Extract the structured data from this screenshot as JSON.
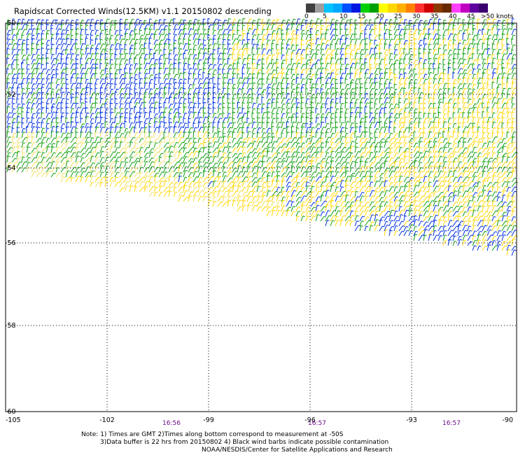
{
  "title": "Rapidscat Corrected Winds(12.5KM) v1.1 20150802 descending",
  "legend": {
    "unit_label": ">50 knots",
    "ticks": [
      "0",
      "5",
      "10",
      "15",
      "20",
      "25",
      "30",
      "35",
      "40",
      "45"
    ],
    "colors": [
      "#404040",
      "#9e9e9e",
      "#00c4ff",
      "#00a8ff",
      "#0050ff",
      "#0018e0",
      "#00d000",
      "#00a000",
      "#ffff00",
      "#ffd700",
      "#ffb000",
      "#ff8000",
      "#ff3030",
      "#d00000",
      "#8a3a00",
      "#6a2a00",
      "#ff40ff",
      "#c000c0",
      "#6000a0",
      "#3a0070"
    ]
  },
  "map": {
    "lat_labels": [
      "-50",
      "-52",
      "-54",
      "-56",
      "-58",
      "-60"
    ],
    "lon_labels": [
      "-105",
      "-102",
      "-99",
      "-96",
      "-93",
      "-90"
    ],
    "time_labels": [
      "16:56",
      "16:57",
      "16:57"
    ]
  },
  "notes": [
    "Note: 1) Times are GMT 2)Times along bottom correspond to measurement at -50S",
    "3)Data buffer is 22 hrs from 20150802 4) Black wind barbs indicate possible contamination",
    "NOAA/NESDIS/Center for Satellite Applications and Research"
  ],
  "wind_palette": {
    "blue": "#0030e0",
    "green": "#10a010",
    "yellow": "#ffd700",
    "pale_yellow": "#f0e060"
  }
}
